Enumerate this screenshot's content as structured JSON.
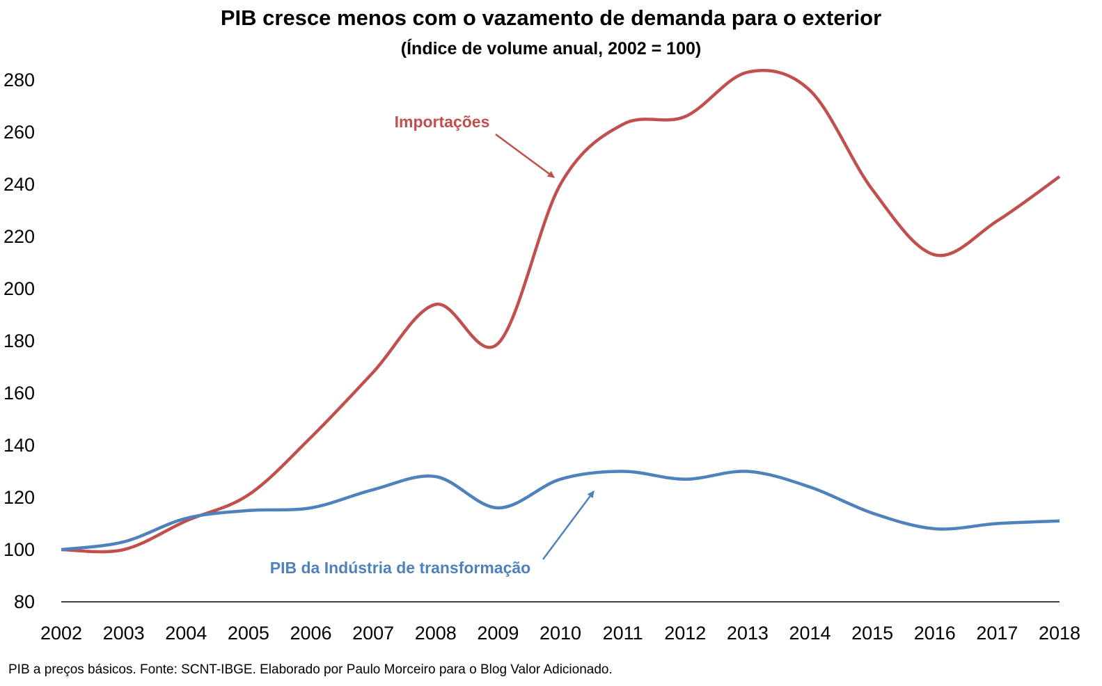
{
  "chart_data": {
    "type": "line",
    "title": "PIB cresce menos com o vazamento de demanda para o exterior",
    "subtitle": "(Índice de volume anual, 2002 = 100)",
    "xlabel": "",
    "ylabel": "",
    "categories": [
      "2002",
      "2003",
      "2004",
      "2005",
      "2006",
      "2007",
      "2008",
      "2009",
      "2010",
      "2011",
      "2012",
      "2013",
      "2014",
      "2015",
      "2016",
      "2017",
      "2018"
    ],
    "ylim": [
      80,
      280
    ],
    "yticks": [
      80,
      100,
      120,
      140,
      160,
      180,
      200,
      220,
      240,
      260,
      280
    ],
    "grid": false,
    "series": [
      {
        "name": "Importações",
        "color": "#c0504d",
        "values": [
          100,
          100,
          111,
          121,
          143,
          168,
          194,
          179,
          240,
          263,
          266,
          283,
          276,
          238,
          213,
          226,
          243
        ]
      },
      {
        "name": "PIB da Indústria de transformação",
        "color": "#4f81bd",
        "values": [
          100,
          103,
          112,
          115,
          116,
          123,
          128,
          116,
          127,
          130,
          127,
          130,
          124,
          114,
          108,
          110,
          111
        ]
      }
    ],
    "annotations": [
      {
        "text": "Importações",
        "series": 0,
        "color": "#c0504d"
      },
      {
        "text": "PIB da Indústria de transformação",
        "series": 1,
        "color": "#4f81bd"
      }
    ]
  },
  "footnote": "PIB a preços básicos. Fonte: SCNT-IBGE. Elaborado por Paulo Morceiro para o Blog Valor Adicionado."
}
